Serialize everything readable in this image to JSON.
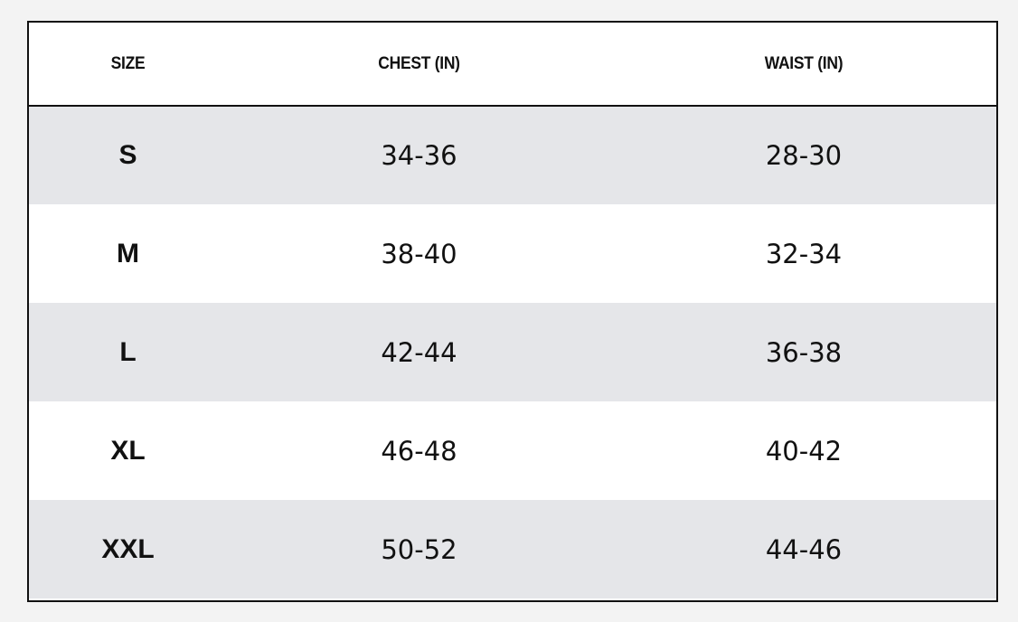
{
  "table": {
    "headers": [
      "SIZE",
      "CHEST (IN)",
      "WAIST (IN)"
    ],
    "rows": [
      {
        "size": "S",
        "chest": "34-36",
        "waist": "28-30"
      },
      {
        "size": "M",
        "chest": "38-40",
        "waist": "32-34"
      },
      {
        "size": "L",
        "chest": "42-44",
        "waist": "36-38"
      },
      {
        "size": "XL",
        "chest": "46-48",
        "waist": "40-42"
      },
      {
        "size": "XXL",
        "chest": "50-52",
        "waist": "44-46"
      }
    ]
  },
  "colors": {
    "shaded_row": "#e5e6e9",
    "plain_row": "#ffffff",
    "border": "#111111",
    "page_background": "#f3f3f3"
  }
}
